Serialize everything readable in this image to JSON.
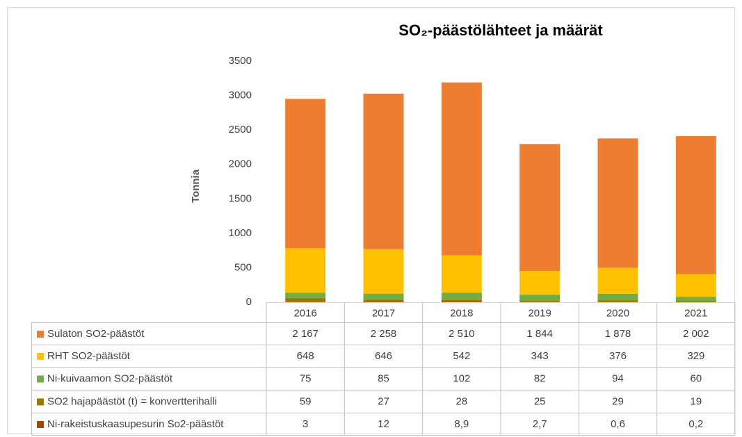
{
  "chart_data": {
    "type": "bar",
    "stacked": true,
    "title": "SO₂-päästölähteet ja määrät",
    "y_label": "Tonnia",
    "categories": [
      "2016",
      "2017",
      "2018",
      "2019",
      "2020",
      "2021"
    ],
    "series": [
      {
        "name": "Sulaton SO2-päästöt",
        "color": "#ed7d31",
        "values": [
          2167,
          2258,
          2510,
          1844,
          1878,
          2002
        ],
        "value_labels": [
          "2 167",
          "2 258",
          "2 510",
          "1 844",
          "1 878",
          "2 002"
        ]
      },
      {
        "name": "RHT SO2-päästöt",
        "color": "#ffc000",
        "values": [
          648,
          646,
          542,
          343,
          376,
          329
        ],
        "value_labels": [
          "648",
          "646",
          "542",
          "343",
          "376",
          "329"
        ]
      },
      {
        "name": "Ni-kuivaamon SO2-päästöt",
        "color": "#70ad47",
        "values": [
          75,
          85,
          102,
          82,
          94,
          60
        ],
        "value_labels": [
          "75",
          "85",
          "102",
          "82",
          "94",
          "60"
        ]
      },
      {
        "name": "SO2 hajapäästöt (t) = konvertterihalli",
        "color": "#9c7a00",
        "values": [
          59,
          27,
          28,
          25,
          29,
          19
        ],
        "value_labels": [
          "59",
          "27",
          "28",
          "25",
          "29",
          "19"
        ]
      },
      {
        "name": "Ni-rakeistuskaasupesurin So2-päästöt",
        "color": "#9e480e",
        "values": [
          3,
          12,
          8.9,
          2.7,
          0.6,
          0.2
        ],
        "value_labels": [
          "3",
          "12",
          "8,9",
          "2,7",
          "0,6",
          "0,2"
        ]
      }
    ],
    "ylim": [
      0,
      3500
    ],
    "yticks": [
      0,
      500,
      1000,
      1500,
      2000,
      2500,
      3000,
      3500
    ],
    "grid": false
  }
}
